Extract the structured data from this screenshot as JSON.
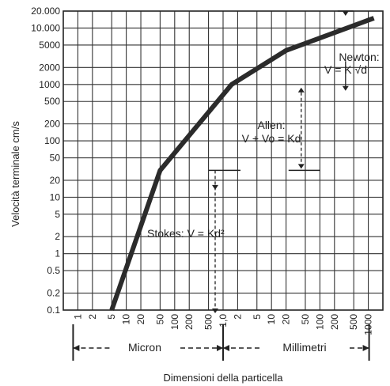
{
  "chart_data": {
    "type": "line",
    "ylabel": "Velocità terminale cm/s",
    "xlabel": "Dimensioni della particella",
    "yscale": "log",
    "xscale": "log",
    "ylim": [
      0.1,
      20000
    ],
    "xlim": [
      0.5,
      2000000
    ],
    "y_ticks": [
      {
        "v": 0.1,
        "label": "0.1"
      },
      {
        "v": 0.2,
        "label": "0.2"
      },
      {
        "v": 0.5,
        "label": "0.5"
      },
      {
        "v": 1,
        "label": "1"
      },
      {
        "v": 2,
        "label": "2"
      },
      {
        "v": 5,
        "label": "5"
      },
      {
        "v": 10,
        "label": "10"
      },
      {
        "v": 20,
        "label": "20"
      },
      {
        "v": 50,
        "label": "50"
      },
      {
        "v": 100,
        "label": "100"
      },
      {
        "v": 200,
        "label": "200"
      },
      {
        "v": 500,
        "label": "500"
      },
      {
        "v": 1000,
        "label": "1000"
      },
      {
        "v": 2000,
        "label": "2000"
      },
      {
        "v": 5000,
        "label": "5000"
      },
      {
        "v": 10000,
        "label": "10.000"
      },
      {
        "v": 20000,
        "label": "20.000"
      }
    ],
    "x_ticks": [
      {
        "v": 1,
        "label": "1"
      },
      {
        "v": 2,
        "label": "2"
      },
      {
        "v": 5,
        "label": "5"
      },
      {
        "v": 10,
        "label": "10"
      },
      {
        "v": 20,
        "label": "20"
      },
      {
        "v": 50,
        "label": "50"
      },
      {
        "v": 100,
        "label": "100"
      },
      {
        "v": 200,
        "label": "200"
      },
      {
        "v": 500,
        "label": "500"
      },
      {
        "v": 1000,
        "label": "1,0"
      },
      {
        "v": 2000,
        "label": "2"
      },
      {
        "v": 5000,
        "label": "5"
      },
      {
        "v": 10000,
        "label": "10"
      },
      {
        "v": 20000,
        "label": "20"
      },
      {
        "v": 50000,
        "label": "50"
      },
      {
        "v": 100000,
        "label": "100"
      },
      {
        "v": 200000,
        "label": "200"
      },
      {
        "v": 500000,
        "label": "500"
      },
      {
        "v": 1000000,
        "label": "1000"
      }
    ],
    "series": [
      {
        "x": [
          5,
          50,
          1500,
          20000,
          1300000
        ],
        "y": [
          0.1,
          30,
          1000,
          4000,
          15000
        ]
      }
    ],
    "regimes": [
      {
        "label": "Stokes: V = Kd²",
        "x_start": 0.5,
        "x_end": 1000
      },
      {
        "label": "Allen:",
        "formula": "V + Vo = Kd",
        "x_start": 1000,
        "x_end": 500000
      },
      {
        "label": "Newton:",
        "formula": "V = K √d",
        "x_start": 500000,
        "x_end": 2000000
      }
    ],
    "unit_ranges": [
      {
        "label": "Micron",
        "x_start": 1,
        "x_end": 1000
      },
      {
        "label": "Millimetri",
        "x_start": 1000,
        "x_end": 1000000
      }
    ]
  }
}
